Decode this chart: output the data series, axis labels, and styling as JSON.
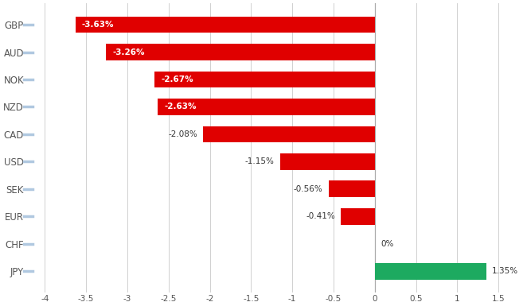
{
  "categories": [
    "JPY",
    "CHF",
    "EUR",
    "SEK",
    "USD",
    "CAD",
    "NZD",
    "NOK",
    "AUD",
    "GBP"
  ],
  "values": [
    1.35,
    0.0,
    -0.41,
    -0.56,
    -1.15,
    -2.08,
    -2.63,
    -2.67,
    -3.26,
    -3.63
  ],
  "labels": [
    "1.35%",
    "0%",
    "-0.41%",
    "-0.56%",
    "-1.15%",
    "-2.08%",
    "-2.63%",
    "-2.67%",
    "-3.26%",
    "-3.63%"
  ],
  "bar_colors": [
    "#1daa60",
    null,
    "#e00000",
    "#e00000",
    "#e00000",
    "#e00000",
    "#e00000",
    "#e00000",
    "#e00000",
    "#e00000"
  ],
  "xlim": [
    -4.2,
    1.8
  ],
  "xticks": [
    -4,
    -3.5,
    -3,
    -2.5,
    -2,
    -1.5,
    -1,
    -0.5,
    0,
    0.5,
    1,
    1.5
  ],
  "xtick_labels": [
    "-4",
    "-3.5",
    "-3",
    "-2.5",
    "-2",
    "-1.5",
    "-1",
    "-0.5",
    "0",
    "0.5",
    "1",
    "1.5"
  ],
  "background_color": "#ffffff",
  "grid_color": "#d0d0d0",
  "bar_height": 0.6,
  "label_inside_threshold": -2.5,
  "tick_color": "#b0c8e0"
}
